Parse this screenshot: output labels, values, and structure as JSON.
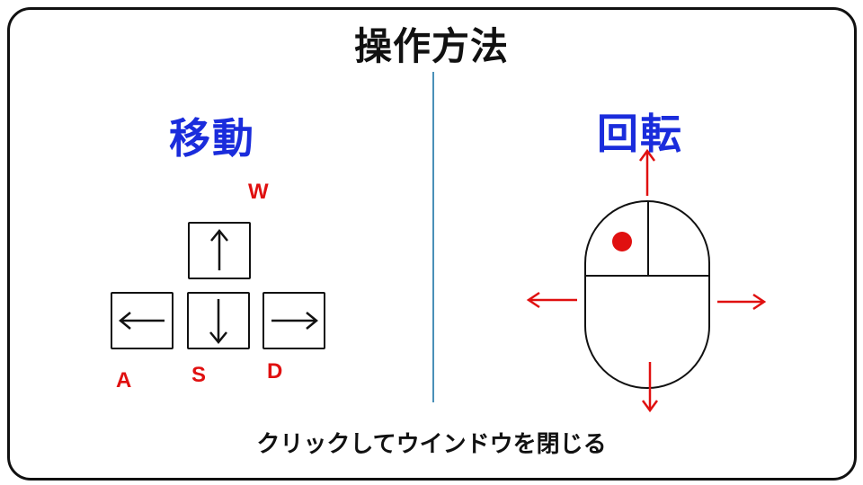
{
  "screen": {
    "title": "操作方法",
    "footer_text": "クリックしてウインドウを閉じる"
  },
  "move_section": {
    "title": "移動",
    "keys": [
      {
        "letter": "W",
        "arrow": "up-arrow-icon"
      },
      {
        "letter": "A",
        "arrow": "left-arrow-icon"
      },
      {
        "letter": "S",
        "arrow": "down-arrow-icon"
      },
      {
        "letter": "D",
        "arrow": "right-arrow-icon"
      }
    ]
  },
  "rotate_section": {
    "title": "回転",
    "icon": "mouse-icon",
    "directions": [
      "up-arrow-icon",
      "left-arrow-icon",
      "right-arrow-icon",
      "down-arrow-icon"
    ]
  },
  "colors": {
    "section_title": "#1a2cdc",
    "key_letter": "#e01010",
    "divider": "#4a90b8",
    "arrow_red": "#e01010"
  }
}
